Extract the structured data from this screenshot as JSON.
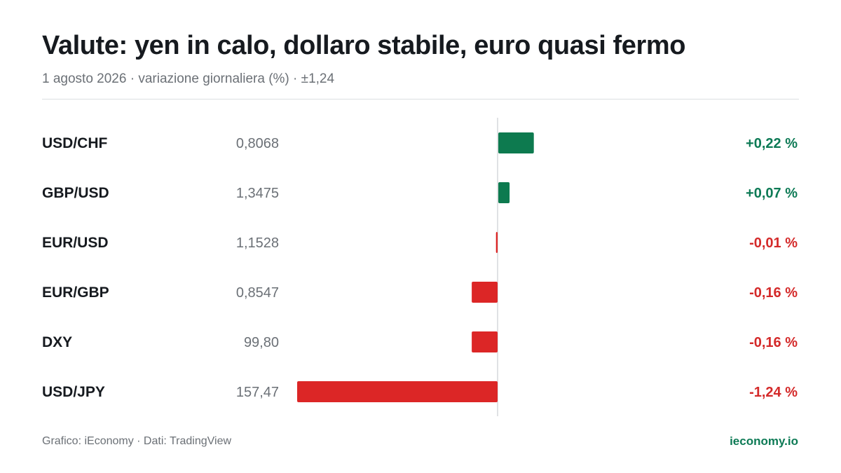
{
  "title": "Valute: yen in calo, dollaro stabile, euro quasi fermo",
  "subtitle": "1 agosto 2026 · variazione giornaliera (%) · ±1,24",
  "footer": {
    "source": "Grafico: iEconomy · Dati: TradingView",
    "brand": "ieconomy.io"
  },
  "colors": {
    "positive": "#0d7a4f",
    "negative": "#dc2626",
    "positive_text": "#0d7a55",
    "negative_text": "#d42a2a",
    "zero_line": "#d6d9dc"
  },
  "chart_data": {
    "type": "bar",
    "orientation": "horizontal",
    "categories": [
      "USD/CHF",
      "GBP/USD",
      "EUR/USD",
      "EUR/GBP",
      "DXY",
      "USD/JPY"
    ],
    "prices": [
      "0,8068",
      "1,3475",
      "1,1528",
      "0,8547",
      "99,80",
      "157,47"
    ],
    "values": [
      0.22,
      0.07,
      -0.01,
      -0.16,
      -0.16,
      -1.24
    ],
    "value_labels": [
      "+0,22 %",
      "+0,07 %",
      "-0,01 %",
      "-0,16 %",
      "-0,16 %",
      "-1,24 %"
    ],
    "xlim": [
      -1.24,
      1.24
    ],
    "grid": false
  }
}
